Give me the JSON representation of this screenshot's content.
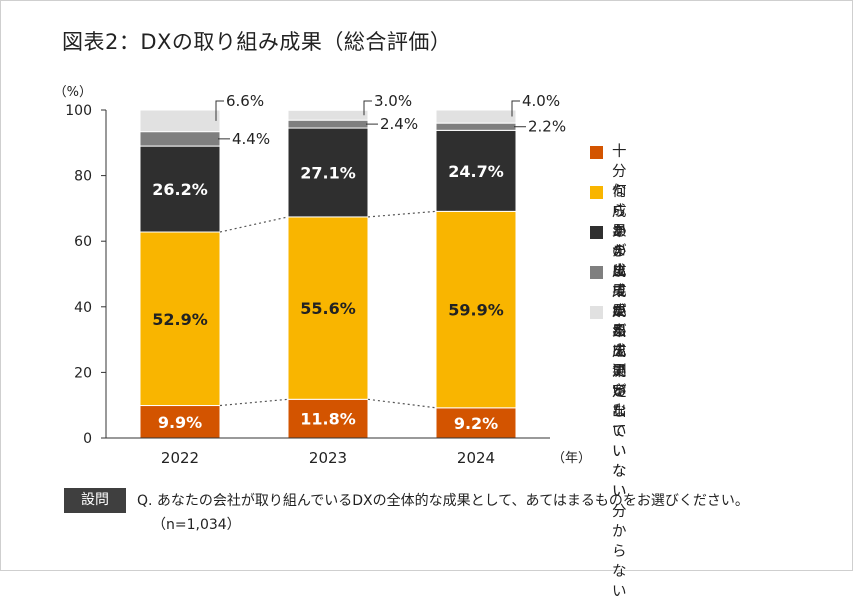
{
  "title": "図表2：DXの取り組み成果（総合評価）",
  "colors": {
    "background": "#ffffff",
    "axis": "#333333",
    "jyubun": "#d35400",
    "nanraka": "#f9b500",
    "amari": "#2f2f2f",
    "mattaku": "#7f7f7f",
    "sokutei": "#e1e1e1"
  },
  "chart_data": {
    "type": "bar",
    "stacked": true,
    "categories": [
      "2022",
      "2023",
      "2024"
    ],
    "ylim": [
      0,
      100
    ],
    "yticks": [
      0,
      20,
      40,
      60,
      80,
      100
    ],
    "ylabel": "（%）",
    "xlabel": "（年）",
    "series": [
      {
        "key": "jyubun",
        "name": "十分な成果が出ている",
        "values": [
          9.9,
          11.8,
          9.2
        ],
        "labels": [
          "9.9%",
          "11.8%",
          "9.2%"
        ],
        "label_color": "#ffffff"
      },
      {
        "key": "nanraka",
        "name": "何らかの成果が出ている",
        "values": [
          52.9,
          55.6,
          59.9
        ],
        "labels": [
          "52.9%",
          "55.6%",
          "59.9%"
        ],
        "label_color": "#222222"
      },
      {
        "key": "amari",
        "name": "あまり成果が出ていない",
        "values": [
          26.2,
          27.1,
          24.7
        ],
        "labels": [
          "26.2%",
          "27.1%",
          "24.7%"
        ],
        "label_color": "#ffffff"
      },
      {
        "key": "mattaku",
        "name": "まったく成果が出ていない",
        "values": [
          4.4,
          2.4,
          2.2
        ],
        "labels": [
          "4.4%",
          "2.4%",
          "2.2%"
        ],
        "label_color": "#222222"
      },
      {
        "key": "sokutei",
        "name": "成果を測定していない\n分からない",
        "values": [
          6.6,
          3.0,
          4.0
        ],
        "labels": [
          "6.6%",
          "3.0%",
          "4.0%"
        ],
        "label_color": "#222222"
      }
    ],
    "connectors": [
      0,
      1
    ]
  },
  "question": {
    "badge": "設問",
    "text": "Q. あなたの会社が取り組んでいるDXの全体的な成果として、あてはまるものをお選びください。",
    "n": "（n=1,034）"
  }
}
